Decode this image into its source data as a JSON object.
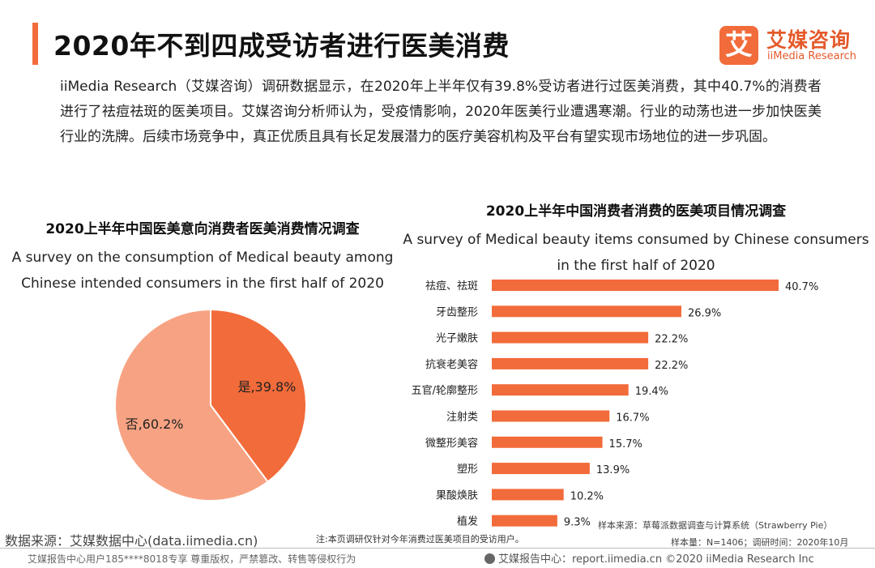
{
  "header": {
    "title": "2020年不到四成受访者进行医美消费",
    "logo_mark": "艾",
    "logo_cn": "艾媒咨询",
    "logo_en": "iiMedia Research"
  },
  "intro": "iiMedia Research（艾媒咨询）调研数据显示，在2020年上半年仅有39.8%受访者进行过医美消费，其中40.7%的消费者进行了祛痘祛斑的医美项目。艾媒咨询分析师认为，受疫情影响，2020年医美行业遭遇寒潮。行业的动荡也进一步加快医美行业的洗牌。后续市场竞争中，真正优质且具有长足发展潜力的医疗美容机构及平台有望实现市场地位的进一步巩固。",
  "chart_data": [
    {
      "type": "pie",
      "title": "2020上半年中国医美意向消费者医美消费情况调查",
      "subtitle": "A survey on the consumption of Medical beauty among Chinese intended consumers in the first half of 2020",
      "slices": [
        {
          "label": "是",
          "value": 39.8,
          "display": "是,39.8%",
          "color": "#f26b3a"
        },
        {
          "label": "否",
          "value": 60.2,
          "display": "否,60.2%",
          "color": "#f7a383"
        }
      ]
    },
    {
      "type": "bar",
      "orientation": "horizontal",
      "title": "2020上半年中国消费者消费的医美项目情况调查",
      "subtitle": "A survey of Medical beauty items consumed by Chinese consumers in the first half of 2020",
      "categories": [
        "祛痘、祛斑",
        "牙齿整形",
        "光子嫩肤",
        "抗衰老美容",
        "五官/轮廓整形",
        "注射类",
        "微整形美容",
        "塑形",
        "果酸焕肤",
        "植发"
      ],
      "values": [
        40.7,
        26.9,
        22.2,
        22.2,
        19.4,
        16.7,
        15.7,
        13.9,
        10.2,
        9.3
      ],
      "value_labels": [
        "40.7%",
        "26.9%",
        "22.2%",
        "22.2%",
        "19.4%",
        "16.7%",
        "15.7%",
        "13.9%",
        "10.2%",
        "9.3%"
      ],
      "unit": "%",
      "xlim": [
        0,
        40.7
      ],
      "color": "#f26b3a"
    }
  ],
  "footer": {
    "source": "数据来源：艾媒数据中心(data.iimedia.cn)",
    "note": "注:本页调研仅针对今年消费过医美项目的受访用户。",
    "sample_source": "样本来源：草莓派数据调查与计算系统（Strawberry Pie）",
    "sample_size": "样本量：N=1406；调研时间：2020年10月",
    "copyright_left": "艾媒报告中心用户185****8018专享 尊重版权，严禁篡改、转售等侵权行为",
    "copyright_right": "艾媒报告中心：report.iimedia.cn ©2020 iiMedia Research Inc"
  }
}
